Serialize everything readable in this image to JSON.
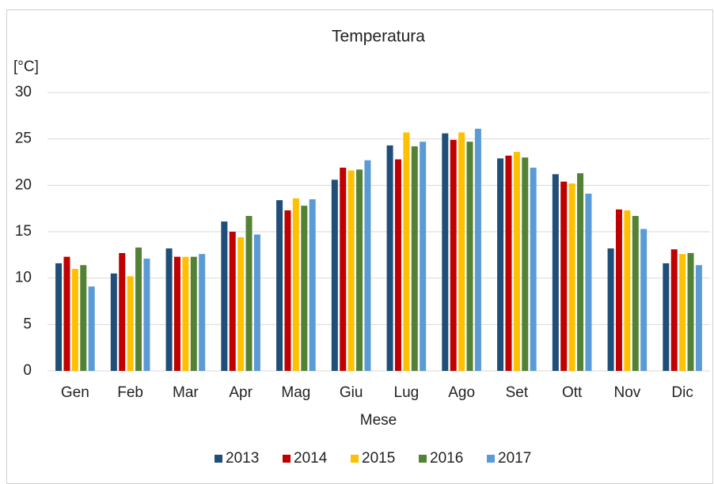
{
  "chart_data": {
    "type": "bar",
    "title": "Temperatura",
    "y_label": "[°C]",
    "x_label": "Mese",
    "categories": [
      "Gen",
      "Feb",
      "Mar",
      "Apr",
      "Mag",
      "Giu",
      "Lug",
      "Ago",
      "Set",
      "Ott",
      "Nov",
      "Dic"
    ],
    "series": [
      {
        "name": "2013",
        "color": "#1f4e79",
        "values": [
          11.6,
          10.5,
          13.2,
          16.1,
          18.4,
          20.6,
          24.3,
          25.6,
          22.9,
          21.2,
          13.2,
          11.6
        ]
      },
      {
        "name": "2014",
        "color": "#c00000",
        "values": [
          12.3,
          12.7,
          12.3,
          15.0,
          17.3,
          21.9,
          22.8,
          24.9,
          23.2,
          20.4,
          17.4,
          13.1
        ]
      },
      {
        "name": "2015",
        "color": "#ffc000",
        "values": [
          11.0,
          10.2,
          12.3,
          14.4,
          18.6,
          21.6,
          25.7,
          25.7,
          23.6,
          20.2,
          17.3,
          12.6
        ]
      },
      {
        "name": "2016",
        "color": "#548235",
        "values": [
          11.4,
          13.3,
          12.3,
          16.7,
          17.8,
          21.7,
          24.2,
          24.7,
          23.0,
          21.3,
          16.7,
          12.7
        ]
      },
      {
        "name": "2017",
        "color": "#5b9bd5",
        "values": [
          9.1,
          12.1,
          12.6,
          14.7,
          18.5,
          22.7,
          24.7,
          26.1,
          21.9,
          19.1,
          15.3,
          11.4
        ]
      }
    ],
    "ylim": [
      0,
      30
    ],
    "yticks": [
      0,
      5,
      10,
      15,
      20,
      25,
      30
    ],
    "grid": true,
    "legend": "bottom"
  }
}
